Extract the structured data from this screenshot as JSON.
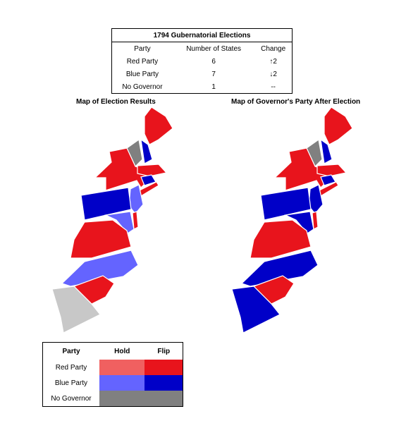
{
  "summary_table": {
    "title": "1794 Gubernatorial Elections",
    "columns": [
      "Party",
      "Number of States",
      "Change"
    ],
    "rows": [
      [
        "Red Party",
        6,
        "↑2"
      ],
      [
        "Blue Party",
        7,
        "↓2"
      ],
      [
        "No Governor",
        1,
        "--"
      ]
    ]
  },
  "maps": [
    {
      "title": "Map of Election Results"
    },
    {
      "title": "Map of Governor's Party After Election"
    }
  ],
  "legend": {
    "columns": [
      "Party",
      "Hold",
      "Flip"
    ],
    "rows": [
      {
        "label": "Red Party",
        "hold": "#f06060",
        "flip": "#e8141c"
      },
      {
        "label": "Blue Party",
        "hold": "#6464ff",
        "flip": "#0000c8"
      },
      {
        "label": "No Governor",
        "color": "#808080"
      }
    ]
  }
}
